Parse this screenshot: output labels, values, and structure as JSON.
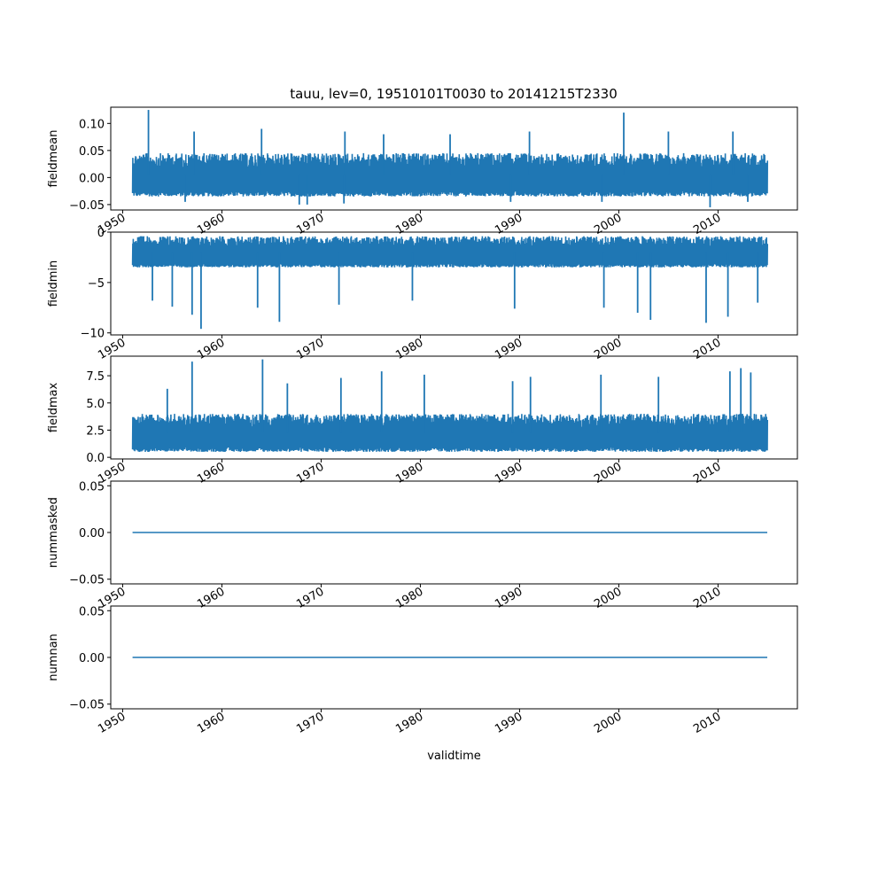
{
  "figure_title": "tauu, lev=0, 19510101T0030 to 20141215T2330",
  "colors": {
    "series": "#1f77b4",
    "axes": "#000000",
    "background": "#ffffff"
  },
  "chart_data": [
    {
      "type": "line",
      "ylabel": "fieldmean",
      "xlabel": "",
      "xlim": [
        1948.8,
        2018.0
      ],
      "ylim": [
        -0.06,
        0.13
      ],
      "yticks": [
        -0.05,
        0.0,
        0.05,
        0.1
      ],
      "yticklabels": [
        "−0.05",
        "0.00",
        "0.05",
        "0.10"
      ],
      "xticks": [
        1950,
        1960,
        1970,
        1980,
        1990,
        2000,
        2010
      ],
      "xticklabels": [
        "1950",
        "1960",
        "1970",
        "1980",
        "1990",
        "2000",
        "2010"
      ],
      "grid": false,
      "series": [
        {
          "band_low": -0.035,
          "band_high": 0.045,
          "x_start": 1951.0,
          "x_end": 2014.96,
          "spikes_high": [
            [
              1952.6,
              0.125
            ],
            [
              1957.2,
              0.085
            ],
            [
              1964.0,
              0.09
            ],
            [
              1972.4,
              0.085
            ],
            [
              1976.3,
              0.08
            ],
            [
              1983.0,
              0.08
            ],
            [
              1991.0,
              0.085
            ],
            [
              2000.5,
              0.12
            ],
            [
              2005.0,
              0.085
            ],
            [
              2011.5,
              0.085
            ]
          ],
          "spikes_low": [
            [
              1956.3,
              -0.045
            ],
            [
              1967.8,
              -0.05
            ],
            [
              1968.6,
              -0.05
            ],
            [
              1972.3,
              -0.048
            ],
            [
              1989.1,
              -0.045
            ],
            [
              1998.3,
              -0.045
            ],
            [
              2009.2,
              -0.055
            ],
            [
              2013.0,
              -0.045
            ]
          ]
        }
      ]
    },
    {
      "type": "line",
      "ylabel": "fieldmin",
      "xlabel": "",
      "xlim": [
        1948.8,
        2018.0
      ],
      "ylim": [
        -10.2,
        0.0
      ],
      "yticks": [
        -10,
        -5,
        0
      ],
      "yticklabels": [
        "−10",
        "−5",
        "0"
      ],
      "xticks": [
        1950,
        1960,
        1970,
        1980,
        1990,
        2000,
        2010
      ],
      "xticklabels": [
        "1950",
        "1960",
        "1970",
        "1980",
        "1990",
        "2000",
        "2010"
      ],
      "grid": false,
      "series": [
        {
          "band_low": -3.5,
          "band_high": -0.4,
          "x_start": 1951.0,
          "x_end": 2014.96,
          "spikes_high": [],
          "spikes_low": [
            [
              1953.0,
              -6.8
            ],
            [
              1955.0,
              -7.4
            ],
            [
              1957.0,
              -8.2
            ],
            [
              1957.9,
              -9.6
            ],
            [
              1963.6,
              -7.5
            ],
            [
              1965.8,
              -8.9
            ],
            [
              1971.8,
              -7.2
            ],
            [
              1979.2,
              -6.8
            ],
            [
              1989.5,
              -7.6
            ],
            [
              1998.5,
              -7.5
            ],
            [
              2001.9,
              -8.0
            ],
            [
              2003.2,
              -8.7
            ],
            [
              2008.8,
              -9.0
            ],
            [
              2011.0,
              -8.4
            ],
            [
              2014.0,
              -7.0
            ]
          ]
        }
      ]
    },
    {
      "type": "line",
      "ylabel": "fieldmax",
      "xlabel": "",
      "xlim": [
        1948.8,
        2018.0
      ],
      "ylim": [
        -0.15,
        9.3
      ],
      "yticks": [
        0.0,
        2.5,
        5.0,
        7.5
      ],
      "yticklabels": [
        "0.0",
        "2.5",
        "5.0",
        "7.5"
      ],
      "xticks": [
        1950,
        1960,
        1970,
        1980,
        1990,
        2000,
        2010
      ],
      "xticklabels": [
        "1950",
        "1960",
        "1970",
        "1980",
        "1990",
        "2000",
        "2010"
      ],
      "grid": false,
      "series": [
        {
          "band_low": 0.5,
          "band_high": 4.0,
          "x_start": 1951.0,
          "x_end": 2014.96,
          "spikes_high": [
            [
              1954.5,
              6.3
            ],
            [
              1957.0,
              8.8
            ],
            [
              1964.1,
              9.0
            ],
            [
              1966.6,
              6.8
            ],
            [
              1972.0,
              7.3
            ],
            [
              1976.1,
              7.9
            ],
            [
              1980.4,
              7.6
            ],
            [
              1989.3,
              7.0
            ],
            [
              1991.1,
              7.4
            ],
            [
              1998.2,
              7.6
            ],
            [
              2004.0,
              7.4
            ],
            [
              2011.2,
              7.9
            ],
            [
              2012.3,
              8.2
            ],
            [
              2013.3,
              7.8
            ]
          ],
          "spikes_low": []
        }
      ]
    },
    {
      "type": "line",
      "ylabel": "nummasked",
      "xlabel": "",
      "xlim": [
        1948.8,
        2018.0
      ],
      "ylim": [
        -0.055,
        0.055
      ],
      "yticks": [
        -0.05,
        0.0,
        0.05
      ],
      "yticklabels": [
        "−0.05",
        "0.00",
        "0.05"
      ],
      "xticks": [
        1950,
        1960,
        1970,
        1980,
        1990,
        2000,
        2010
      ],
      "xticklabels": [
        "1950",
        "1960",
        "1970",
        "1980",
        "1990",
        "2000",
        "2010"
      ],
      "grid": false,
      "series": [
        {
          "x": [
            1951.0,
            2014.96
          ],
          "y": [
            0.0,
            0.0
          ]
        }
      ]
    },
    {
      "type": "line",
      "ylabel": "numnan",
      "xlabel": "validtime",
      "xlim": [
        1948.8,
        2018.0
      ],
      "ylim": [
        -0.055,
        0.055
      ],
      "yticks": [
        -0.05,
        0.0,
        0.05
      ],
      "yticklabels": [
        "−0.05",
        "0.00",
        "0.05"
      ],
      "xticks": [
        1950,
        1960,
        1970,
        1980,
        1990,
        2000,
        2010
      ],
      "xticklabels": [
        "1950",
        "1960",
        "1970",
        "1980",
        "1990",
        "2000",
        "2010"
      ],
      "grid": false,
      "series": [
        {
          "x": [
            1951.0,
            2014.96
          ],
          "y": [
            0.0,
            0.0
          ]
        }
      ]
    }
  ]
}
